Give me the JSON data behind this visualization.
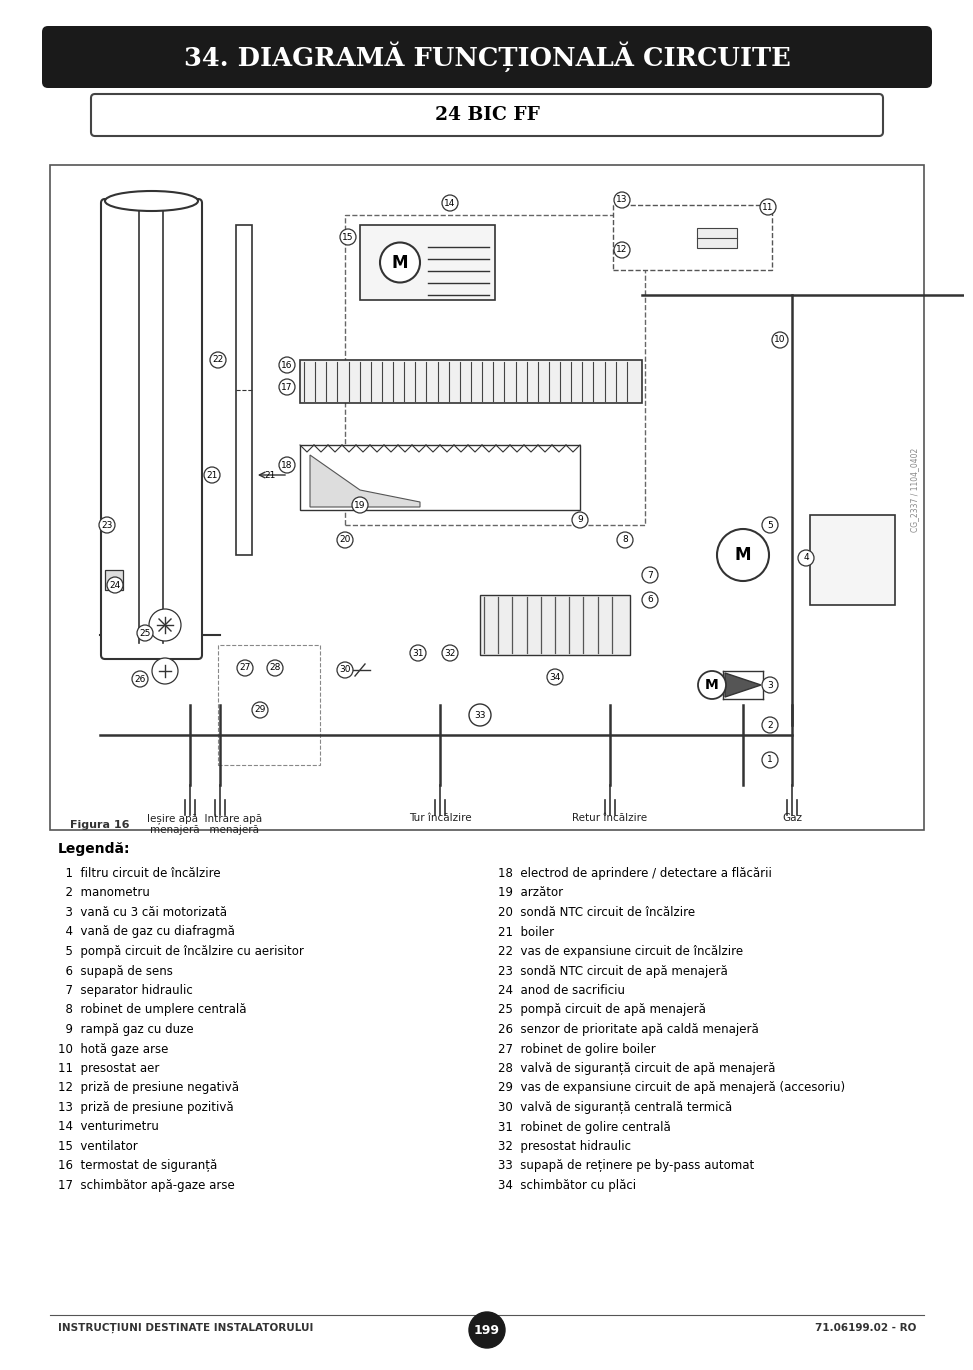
{
  "title": "34. DIAGRAMĂ FUNCȚIONALĂ CIRCUITE",
  "subtitle": "24 BIC FF",
  "title_bg": "#1a1a1a",
  "title_color": "#ffffff",
  "page_bg": "#ffffff",
  "figura_label": "Figura 16",
  "footer_left": "INSTRUCȚIUNI DESTINATE INSTALATORULUI",
  "footer_right": "71.06199.02 - RO",
  "footer_page": "199",
  "legend_title": "Legendă:",
  "legend_left": [
    "  1  filtru circuit de încălzire",
    "  2  manometru",
    "  3  vană cu 3 căi motorizată",
    "  4  vană de gaz cu diafragmă",
    "  5  pompă circuit de încălzire cu aerisitor",
    "  6  supapă de sens",
    "  7  separator hidraulic",
    "  8  robinet de umplere centrală",
    "  9  rampă gaz cu duze",
    "10  hotă gaze arse",
    "11  presostat aer",
    "12  priză de presiune negativă",
    "13  priză de presiune pozitivă",
    "14  venturimetru",
    "15  ventilator",
    "16  termostat de siguranță",
    "17  schimbător apă-gaze arse"
  ],
  "legend_right": [
    "18  electrod de aprindere / detectare a flăcării",
    "19  arzător",
    "20  sondă NTC circuit de încălzire",
    "21  boiler",
    "22  vas de expansiune circuit de încălzire",
    "23  sondă NTC circuit de apă menajeră",
    "24  anod de sacrificiu",
    "25  pompă circuit de apă menajeră",
    "26  senzor de prioritate apă caldă menajeră",
    "27  robinet de golire boiler",
    "28  valvă de siguranță circuit de apă menajeră",
    "29  vas de expansiune circuit de apă menajeră (accesoriu)",
    "30  valvă de siguranță centrală termică",
    "31  robinet de golire centrală",
    "32  presostat hidraulic",
    "33  supapă de reținere pe by-pass automat",
    "34  schimbător cu plăci"
  ],
  "watermark": "CG_2337 / 1104_0402"
}
